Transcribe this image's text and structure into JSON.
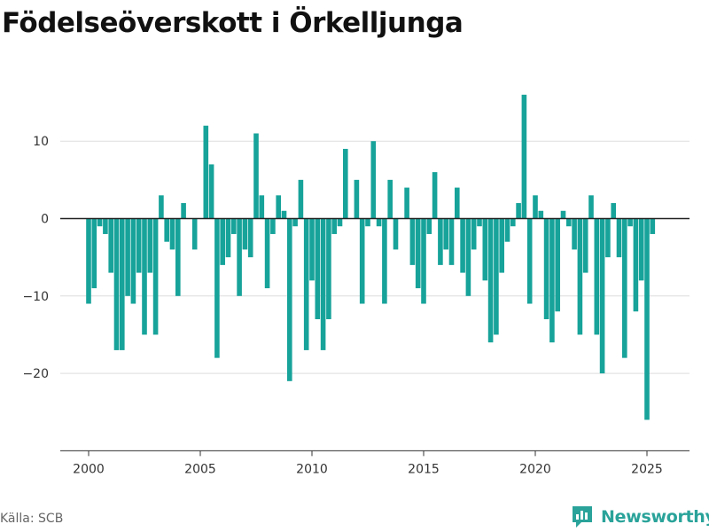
{
  "title": "Födelseöverskott i Örkelljunga",
  "source": "Källa: SCB",
  "brand": {
    "label": "Newsworthy",
    "icon": "newsworthy-logo-icon"
  },
  "colors": {
    "bar": "#17a39a",
    "grid": "#dddddd",
    "zero_line": "#222222",
    "axis": "#333333",
    "brand": "#2aa39a"
  },
  "chart_data": {
    "type": "bar",
    "title": "Födelseöverskott i Örkelljunga",
    "xlabel": "",
    "ylabel": "",
    "x_ticks": [
      2000,
      2005,
      2010,
      2015,
      2020,
      2025
    ],
    "y_ticks": [
      -20,
      -10,
      0,
      10
    ],
    "y_tick_labels": [
      "−20",
      "−10",
      "0",
      "10"
    ],
    "ylim": [
      -30,
      20
    ],
    "grid": true,
    "legend": "none",
    "x": [
      2000.0,
      2000.25,
      2000.5,
      2000.75,
      2001.0,
      2001.25,
      2001.5,
      2001.75,
      2002.0,
      2002.25,
      2002.5,
      2002.75,
      2003.0,
      2003.25,
      2003.5,
      2003.75,
      2004.0,
      2004.25,
      2004.5,
      2004.75,
      2005.0,
      2005.25,
      2005.5,
      2005.75,
      2006.0,
      2006.25,
      2006.5,
      2006.75,
      2007.0,
      2007.25,
      2007.5,
      2007.75,
      2008.0,
      2008.25,
      2008.5,
      2008.75,
      2009.0,
      2009.25,
      2009.5,
      2009.75,
      2010.0,
      2010.25,
      2010.5,
      2010.75,
      2011.0,
      2011.25,
      2011.5,
      2011.75,
      2012.0,
      2012.25,
      2012.5,
      2012.75,
      2013.0,
      2013.25,
      2013.5,
      2013.75,
      2014.0,
      2014.25,
      2014.5,
      2014.75,
      2015.0,
      2015.25,
      2015.5,
      2015.75,
      2016.0,
      2016.25,
      2016.5,
      2016.75,
      2017.0,
      2017.25,
      2017.5,
      2017.75,
      2018.0,
      2018.25,
      2018.5,
      2018.75,
      2019.0,
      2019.25,
      2019.5,
      2019.75,
      2020.0,
      2020.25,
      2020.5,
      2020.75,
      2021.0,
      2021.25,
      2021.5,
      2021.75,
      2022.0,
      2022.25,
      2022.5,
      2022.75,
      2023.0,
      2023.25,
      2023.5,
      2023.75,
      2024.0,
      2024.25,
      2024.5,
      2024.75,
      2025.0,
      2025.25
    ],
    "values": [
      -11,
      -9,
      -1,
      -2,
      -7,
      -17,
      -17,
      -10,
      -11,
      -7,
      -15,
      -7,
      -15,
      3,
      -3,
      -4,
      -10,
      2,
      0,
      -4,
      0,
      12,
      7,
      -18,
      -6,
      -5,
      -2,
      -10,
      -4,
      -5,
      11,
      3,
      -9,
      -2,
      3,
      1,
      -21,
      -1,
      5,
      -17,
      -8,
      -13,
      -17,
      -13,
      -2,
      -1,
      9,
      0,
      5,
      -11,
      -1,
      10,
      -1,
      -11,
      5,
      -4,
      0,
      4,
      -6,
      -9,
      -11,
      -2,
      6,
      -6,
      -4,
      -6,
      4,
      -7,
      -10,
      -4,
      -1,
      -8,
      -16,
      -15,
      -7,
      -3,
      -1,
      2,
      16,
      -11,
      3,
      1,
      -13,
      -16,
      -12,
      1,
      -1,
      -4,
      -15,
      -7,
      3,
      -15,
      -20,
      -5,
      2,
      -5,
      -18,
      -1,
      -12,
      -8,
      -26,
      -2
    ]
  }
}
